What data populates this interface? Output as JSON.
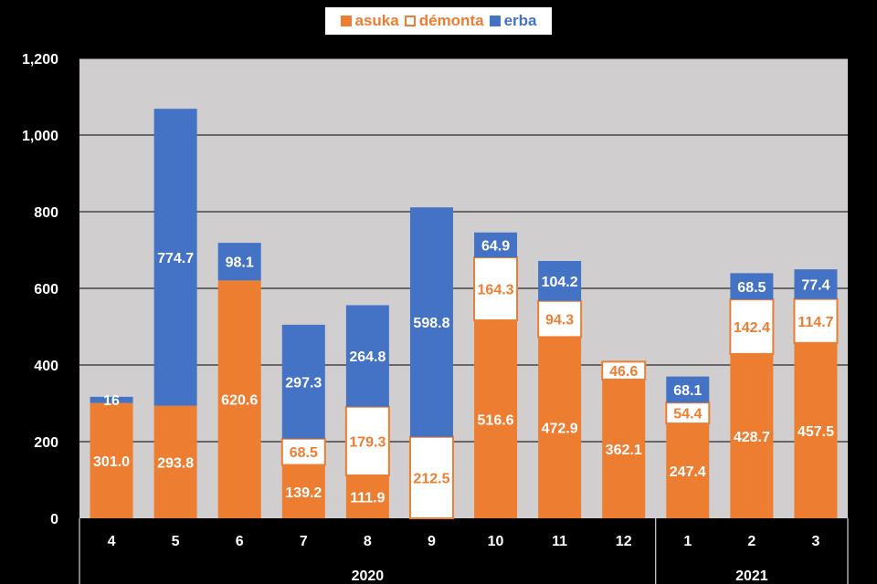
{
  "chart_data": {
    "type": "bar",
    "stacked": true,
    "categories": [
      "4",
      "5",
      "6",
      "7",
      "8",
      "9",
      "10",
      "11",
      "12",
      "1",
      "2",
      "3"
    ],
    "year_groups": [
      {
        "label": "2020",
        "categories": [
          "4",
          "5",
          "6",
          "7",
          "8",
          "9",
          "10",
          "11",
          "12"
        ]
      },
      {
        "label": "2021",
        "categories": [
          "1",
          "2",
          "3"
        ]
      }
    ],
    "series": [
      {
        "name": "asuka",
        "values": [
          301.0,
          293.8,
          620.6,
          139.2,
          111.9,
          0,
          516.6,
          472.9,
          362.1,
          247.4,
          428.7,
          457.5
        ],
        "labels": [
          "301.0",
          "293.8",
          "620.6",
          "139.2",
          "111.9",
          "",
          "516.6",
          "472.9",
          "362.1",
          "247.4",
          "428.7",
          "457.5"
        ]
      },
      {
        "name": "démonta",
        "values": [
          0,
          0,
          0,
          68.5,
          179.3,
          212.5,
          164.3,
          94.3,
          46.6,
          54.4,
          142.4,
          114.7
        ],
        "labels": [
          "",
          "",
          "",
          "68.5",
          "179.3",
          "212.5",
          "164.3",
          "94.3",
          "46.6",
          "54.4",
          "142.4",
          "114.7"
        ]
      },
      {
        "name": "erba",
        "values": [
          16,
          774.7,
          98.1,
          297.3,
          264.8,
          598.8,
          64.9,
          104.2,
          0,
          68.1,
          68.5,
          77.4
        ],
        "labels": [
          "16",
          "774.7",
          "98.1",
          "297.3",
          "264.8",
          "598.8",
          "64.9",
          "104.2",
          "",
          "68.1",
          "68.5",
          "77.4"
        ]
      }
    ],
    "y_ticks": [
      "0",
      "200",
      "400",
      "600",
      "800",
      "1,000",
      "1,200"
    ],
    "ylim": [
      0,
      1200
    ],
    "grid": true,
    "legend_position": "top",
    "colors": {
      "asuka": "#ED7D31",
      "démonta_fill": "#FFFFFF",
      "démonta_border": "#ED7D31",
      "erba": "#4472C4",
      "plot_bg": "#D0CECE",
      "background": "#000000"
    }
  }
}
